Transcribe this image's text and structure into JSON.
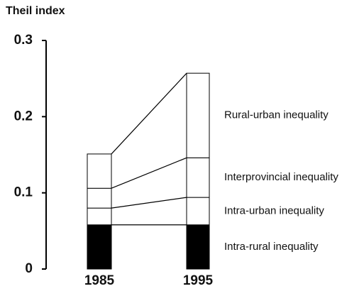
{
  "chart_data": {
    "type": "bar",
    "stacked": true,
    "title": "Theil index",
    "categories": [
      "1985",
      "1995"
    ],
    "series": [
      {
        "name": "Intra-rural inequality",
        "color": "#000000",
        "values": [
          0.058,
          0.058
        ]
      },
      {
        "name": "Intra-urban inequality",
        "color": "#ffffff",
        "values": [
          0.022,
          0.036
        ]
      },
      {
        "name": "Interprovincial inequality",
        "color": "#ffffff",
        "values": [
          0.026,
          0.052
        ]
      },
      {
        "name": "Rural-urban inequality",
        "color": "#ffffff",
        "values": [
          0.045,
          0.111
        ]
      }
    ],
    "ylim": [
      0,
      0.3
    ],
    "yticks": [
      0,
      0.1,
      0.2,
      0.3
    ],
    "grid": false
  }
}
